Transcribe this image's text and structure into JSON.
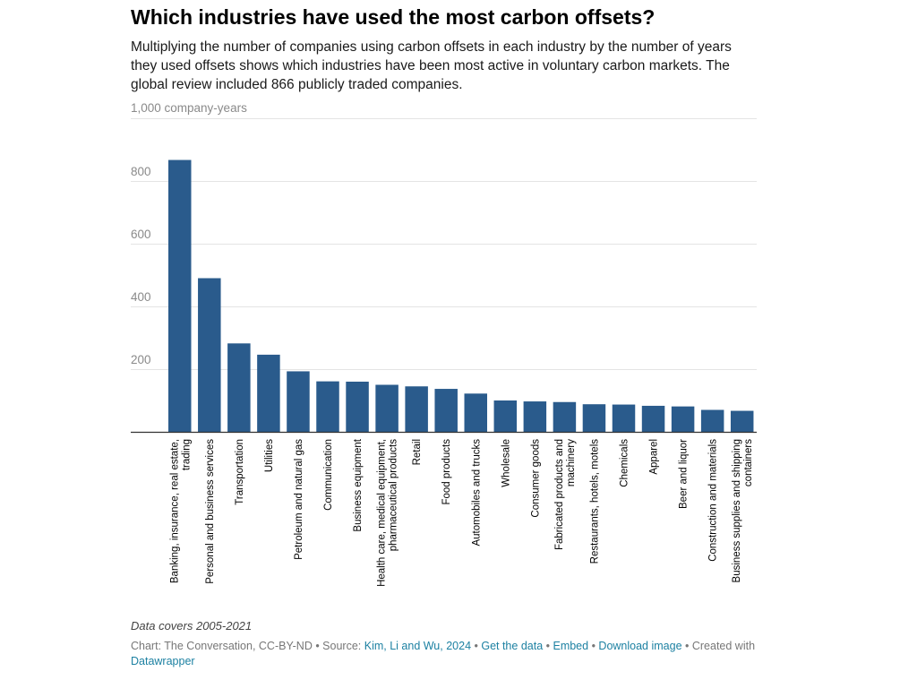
{
  "title": "Which industries have used the most carbon offsets?",
  "subtitle": "Multiplying the number of companies using carbon offsets in each industry by the number of years they used offsets shows which industries have been most active in voluntary carbon markets. The global review included 866 publicly traded companies.",
  "notes": "Data covers 2005-2021",
  "footer": {
    "chart_credit": "Chart: The Conversation, CC-BY-ND",
    "sep1": " • Source: ",
    "source_link": "Kim, Li and Wu, 2024",
    "sep2": " • ",
    "get_data": "Get the data",
    "sep3": " • ",
    "embed": "Embed",
    "sep4": "  • ",
    "download": "Download image",
    "sep5": " • Created with ",
    "datawrapper": "Datawrapper"
  },
  "colors": {
    "bar": "#2a5b8c",
    "grid": "#e4e4e4",
    "axis": "#333333",
    "link": "#1d81a2"
  },
  "chart_data": {
    "type": "bar",
    "title": "Which industries have used the most carbon offsets?",
    "ylabel": "1,000 company-years",
    "ylim": [
      0,
      1000
    ],
    "yticks": [
      200,
      400,
      600,
      800
    ],
    "ytick_labels": [
      "200",
      "400",
      "600",
      "800"
    ],
    "grid": true,
    "categories": [
      "Banking, insurance, real estate, trading",
      "Personal and business services",
      "Transportation",
      "Utilities",
      "Petroleum and natural gas",
      "Communication",
      "Business equipment",
      "Health care, medical equipment, pharmaceutical products",
      "Retail",
      "Food products",
      "Automobiles and trucks",
      "Wholesale",
      "Consumer goods",
      "Fabricated products and machinery",
      "Restaurants, hotels, motels",
      "Chemicals",
      "Apparel",
      "Beer and liquor",
      "Construction and materials",
      "Business supplies and shipping containers"
    ],
    "category_lines": [
      [
        "Banking, insurance, real estate,",
        "trading"
      ],
      [
        "Personal and business services"
      ],
      [
        "Transportation"
      ],
      [
        "Utilities"
      ],
      [
        "Petroleum and natural gas"
      ],
      [
        "Communication"
      ],
      [
        "Business equipment"
      ],
      [
        "Health care, medical equipment,",
        "pharmaceutical products"
      ],
      [
        "Retail"
      ],
      [
        "Food products"
      ],
      [
        "Automobiles and trucks"
      ],
      [
        "Wholesale"
      ],
      [
        "Consumer goods"
      ],
      [
        "Fabricated products and",
        "machinery"
      ],
      [
        "Restaurants, hotels, motels"
      ],
      [
        "Chemicals"
      ],
      [
        "Apparel"
      ],
      [
        "Beer and liquor"
      ],
      [
        "Construction and materials"
      ],
      [
        "Business supplies and shipping",
        "containers"
      ]
    ],
    "values": [
      867,
      490,
      282,
      246,
      193,
      161,
      160,
      150,
      145,
      137,
      122,
      100,
      97,
      95,
      88,
      87,
      83,
      81,
      70,
      67
    ]
  }
}
